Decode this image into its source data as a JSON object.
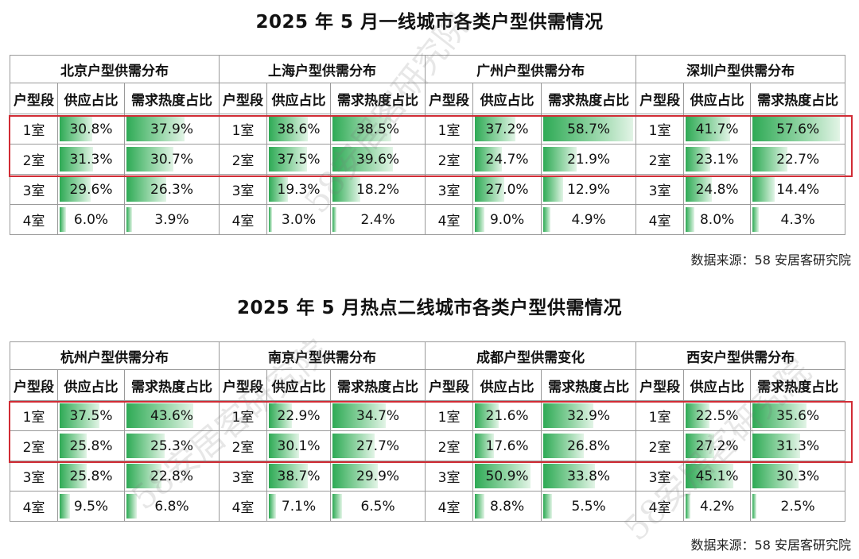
{
  "sections": [
    {
      "title": "2025 年 5 月一线城市各类户型供需情况",
      "source": "数据来源：58 安居客研究院",
      "col_headers": {
        "segment": "户型段",
        "supply": "供应占比",
        "demand": "需求热度占比"
      },
      "cities": [
        {
          "name": "北京户型供需分布",
          "rows": [
            {
              "seg": "1室",
              "supply": "30.8%",
              "demand": "37.9%"
            },
            {
              "seg": "2室",
              "supply": "31.3%",
              "demand": "30.7%"
            },
            {
              "seg": "3室",
              "supply": "29.6%",
              "demand": "26.3%"
            },
            {
              "seg": "4室",
              "supply": "6.0%",
              "demand": "3.9%"
            }
          ]
        },
        {
          "name": "上海户型供需分布",
          "rows": [
            {
              "seg": "1室",
              "supply": "38.6%",
              "demand": "38.5%"
            },
            {
              "seg": "2室",
              "supply": "37.5%",
              "demand": "39.6%"
            },
            {
              "seg": "3室",
              "supply": "19.3%",
              "demand": "18.2%"
            },
            {
              "seg": "4室",
              "supply": "3.0%",
              "demand": "2.4%"
            }
          ]
        },
        {
          "name": "广州户型供需分布",
          "rows": [
            {
              "seg": "1室",
              "supply": "37.2%",
              "demand": "58.7%"
            },
            {
              "seg": "2室",
              "supply": "24.7%",
              "demand": "21.9%"
            },
            {
              "seg": "3室",
              "supply": "27.0%",
              "demand": "12.9%"
            },
            {
              "seg": "4室",
              "supply": "9.0%",
              "demand": "4.9%"
            }
          ]
        },
        {
          "name": "深圳户型供需分布",
          "rows": [
            {
              "seg": "1室",
              "supply": "41.7%",
              "demand": "57.6%"
            },
            {
              "seg": "2室",
              "supply": "23.1%",
              "demand": "22.7%"
            },
            {
              "seg": "3室",
              "supply": "24.8%",
              "demand": "14.4%"
            },
            {
              "seg": "4室",
              "supply": "8.0%",
              "demand": "4.3%"
            }
          ]
        }
      ]
    },
    {
      "title": "2025 年 5 月热点二线城市各类户型供需情况",
      "source": "数据来源：58 安居客研究院",
      "col_headers": {
        "segment": "户型段",
        "supply": "供应占比",
        "demand": "需求热度占比"
      },
      "cities": [
        {
          "name": "杭州户型供需分布",
          "rows": [
            {
              "seg": "1室",
              "supply": "37.5%",
              "demand": "43.6%"
            },
            {
              "seg": "2室",
              "supply": "25.8%",
              "demand": "25.3%"
            },
            {
              "seg": "3室",
              "supply": "25.8%",
              "demand": "22.8%"
            },
            {
              "seg": "4室",
              "supply": "9.5%",
              "demand": "6.8%"
            }
          ]
        },
        {
          "name": "南京户型供需分布",
          "rows": [
            {
              "seg": "1室",
              "supply": "22.9%",
              "demand": "34.7%"
            },
            {
              "seg": "2室",
              "supply": "30.1%",
              "demand": "27.7%"
            },
            {
              "seg": "3室",
              "supply": "38.7%",
              "demand": "29.9%"
            },
            {
              "seg": "4室",
              "supply": "7.1%",
              "demand": "6.5%"
            }
          ]
        },
        {
          "name": "成都户型供需变化",
          "rows": [
            {
              "seg": "1室",
              "supply": "21.6%",
              "demand": "32.9%"
            },
            {
              "seg": "2室",
              "supply": "17.6%",
              "demand": "26.8%"
            },
            {
              "seg": "3室",
              "supply": "50.9%",
              "demand": "33.8%"
            },
            {
              "seg": "4室",
              "supply": "8.8%",
              "demand": "5.5%"
            }
          ]
        },
        {
          "name": "西安户型供需分布",
          "rows": [
            {
              "seg": "1室",
              "supply": "22.5%",
              "demand": "35.6%"
            },
            {
              "seg": "2室",
              "supply": "27.2%",
              "demand": "31.3%"
            },
            {
              "seg": "3室",
              "supply": "45.1%",
              "demand": "30.3%"
            },
            {
              "seg": "4室",
              "supply": "4.2%",
              "demand": "2.5%"
            }
          ]
        }
      ]
    }
  ],
  "watermark": "58安居客研究院",
  "colors": {
    "bar_dark": "#2eaa55",
    "bar_light": "#e2f4e6",
    "highlight_border": "#d12c35",
    "grid": "#9a9a9a"
  }
}
